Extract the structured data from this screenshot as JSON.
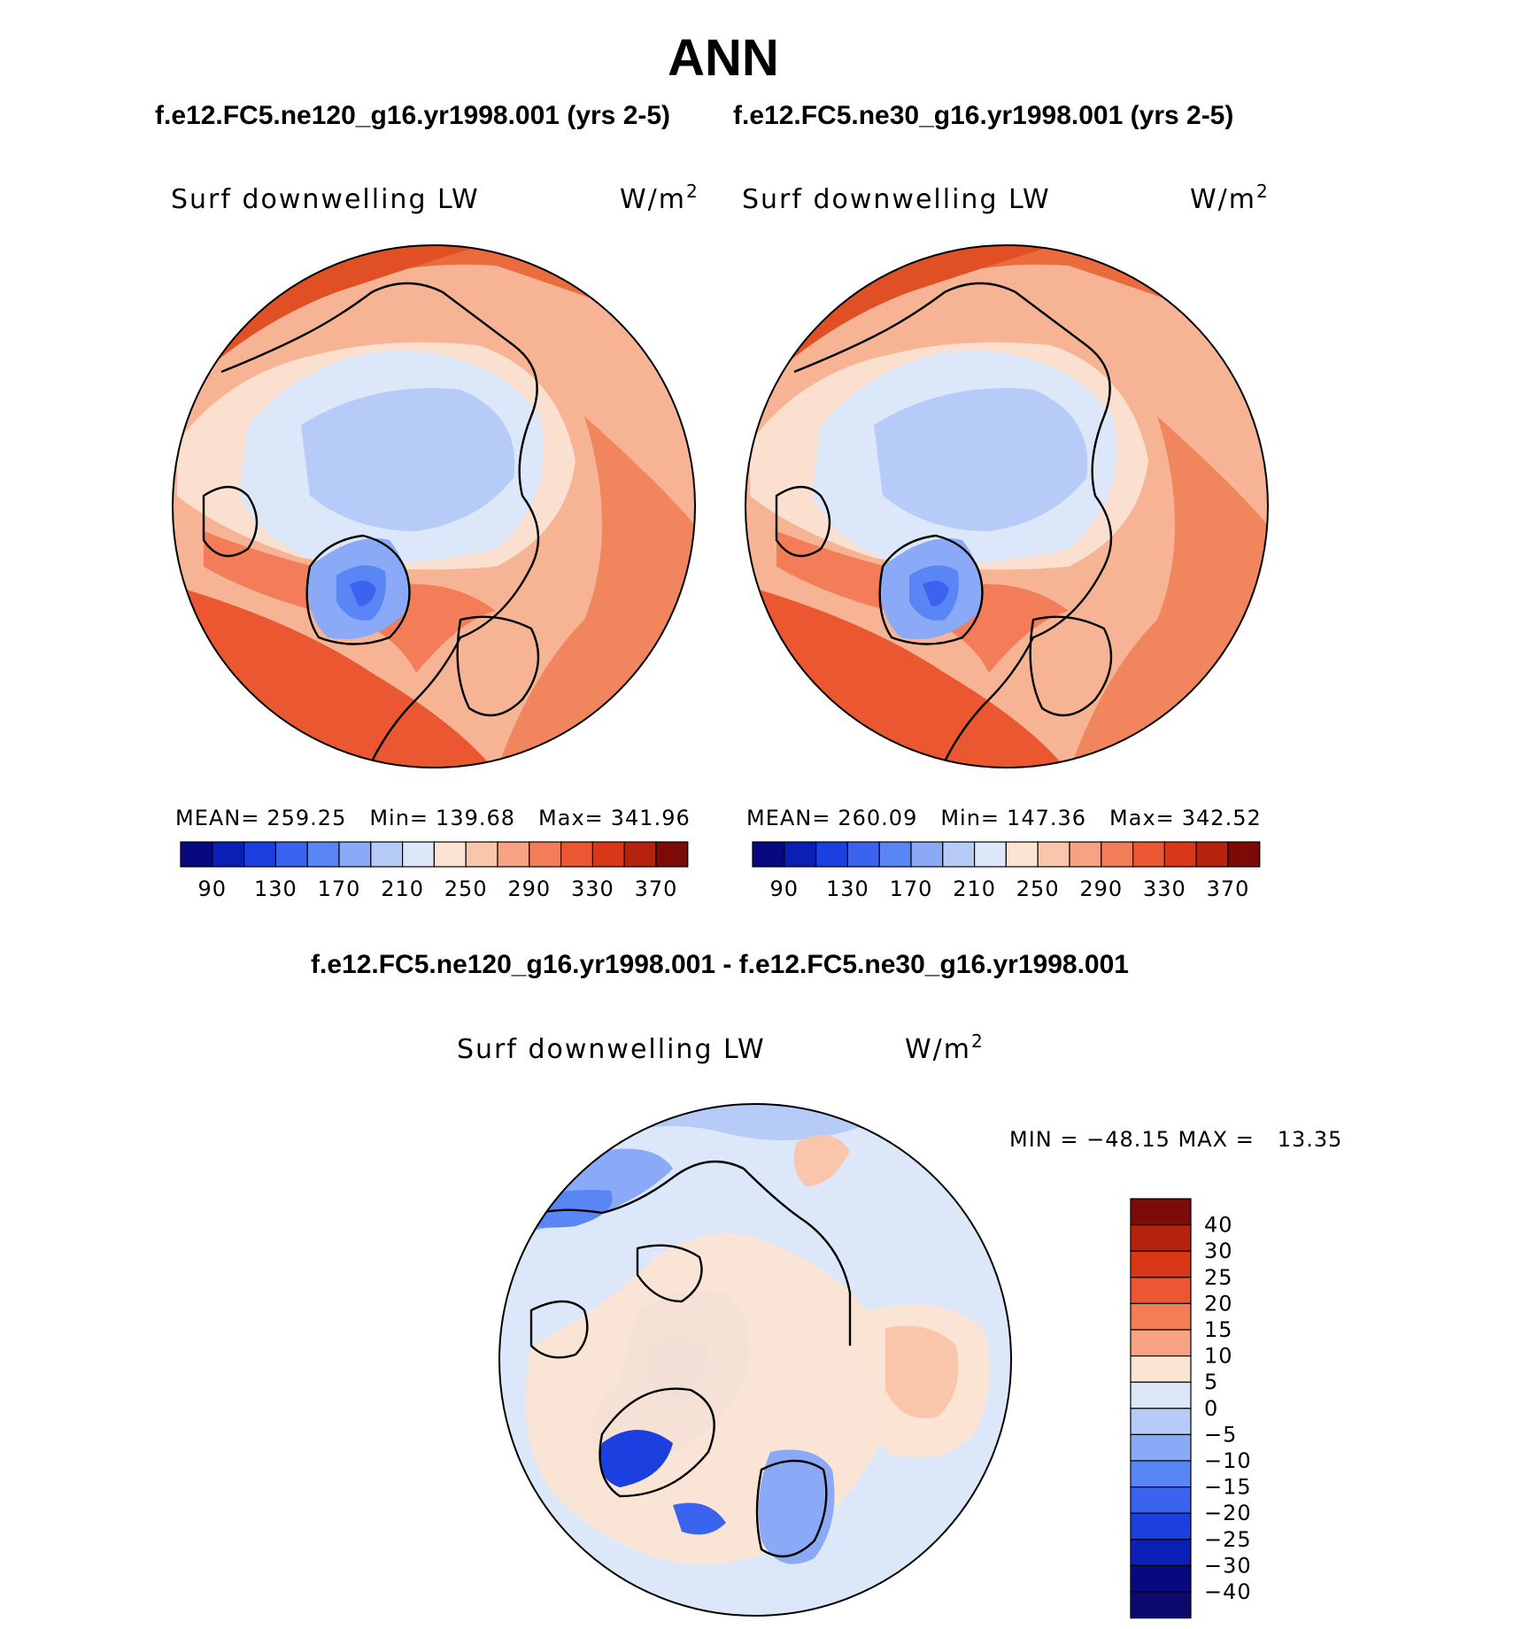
{
  "header": {
    "title": "ANN",
    "subtitle_left": "f.e12.FC5.ne120_g16.yr1998.001 (yrs 2-5)",
    "subtitle_right": "f.e12.FC5.ne30_g16.yr1998.001 (yrs 2-5)",
    "diff_title": "f.e12.FC5.ne120_g16.yr1998.001 - f.e12.FC5.ne30_g16.yr1998.001"
  },
  "panels": [
    {
      "variable": "Surf downwelling LW",
      "units_base": "W/m",
      "units_sup": "2",
      "stats": {
        "mean_label": "MEAN=",
        "mean": "259.25",
        "min_label": "Min=",
        "min": "139.68",
        "max_label": "Max=",
        "max": "341.96"
      }
    },
    {
      "variable": "Surf downwelling LW",
      "units_base": "W/m",
      "units_sup": "2",
      "stats": {
        "mean_label": "MEAN=",
        "mean": "260.09",
        "min_label": "Min=",
        "min": "147.36",
        "max_label": "Max=",
        "max": "342.52"
      }
    }
  ],
  "diff_panel": {
    "variable": "Surf downwelling LW",
    "units_base": "W/m",
    "units_sup": "2",
    "minmax": "MIN = −48.15 MAX =   13.35"
  },
  "colorbar_main": {
    "tick_labels": [
      "90",
      "130",
      "170",
      "210",
      "250",
      "290",
      "330",
      "370"
    ],
    "colors": [
      "#08087f",
      "#0c1fb5",
      "#1c40e0",
      "#3a63f0",
      "#5a86f5",
      "#8aaaf7",
      "#b6cbf8",
      "#dce8fa",
      "#fbe4d4",
      "#f9c6ac",
      "#f6a283",
      "#f27d58",
      "#ea5730",
      "#d93818",
      "#b5220e",
      "#7c0a06"
    ]
  },
  "colorbar_diff": {
    "labels": [
      "40",
      "30",
      "25",
      "20",
      "15",
      "10",
      "5",
      "0",
      "−5",
      "−10",
      "−15",
      "−20",
      "−25",
      "−30",
      "−40"
    ],
    "colors": [
      "#7c0a06",
      "#b5220e",
      "#d93818",
      "#ea5730",
      "#f27d58",
      "#f6a283",
      "#fbe4d4",
      "#dce8fa",
      "#b6cbf8",
      "#8aaaf7",
      "#5a86f5",
      "#3a63f0",
      "#1c40e0",
      "#0c1fb5",
      "#08087f",
      "#0a0a6e"
    ]
  }
}
